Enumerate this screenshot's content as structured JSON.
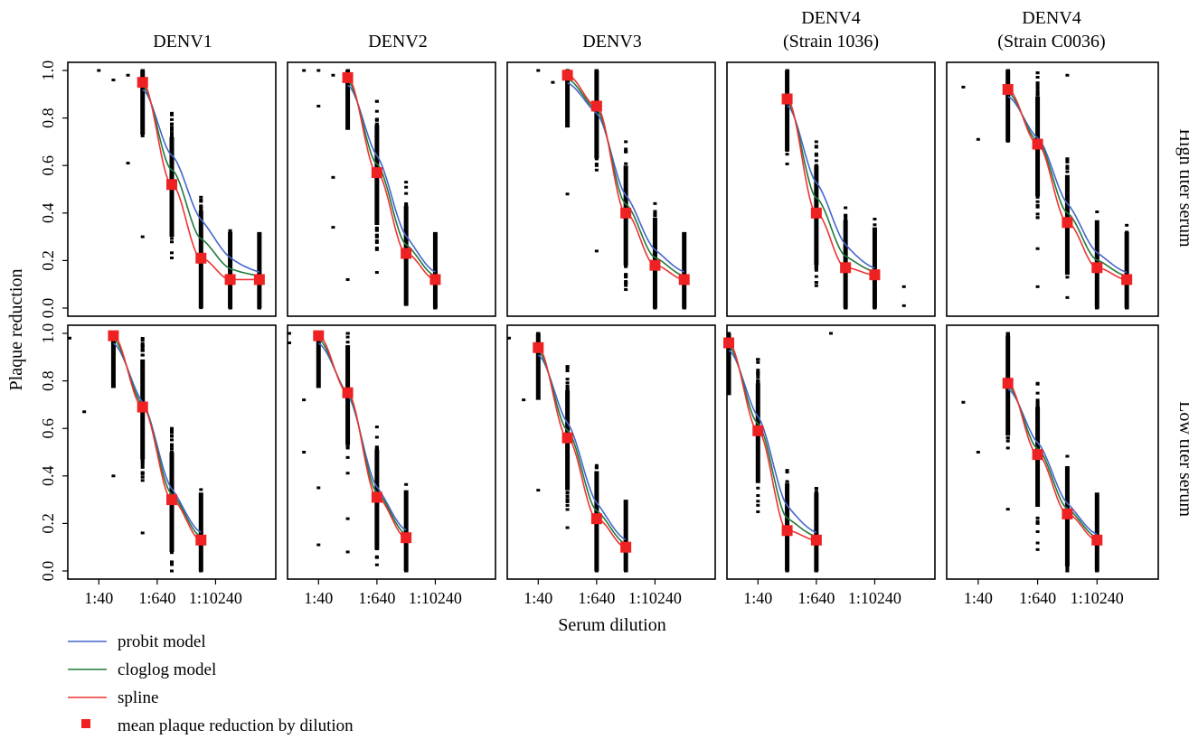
{
  "figure": {
    "ylabel": "Plaque reduction",
    "xlabel": "Serum dilution",
    "row_labels": [
      "High titer serum",
      "Low titer serum"
    ],
    "col_titles": [
      [
        "DENV1"
      ],
      [
        "DENV2"
      ],
      [
        "DENV3"
      ],
      [
        "DENV4",
        "(Strain 1036)"
      ],
      [
        "DENV4",
        "(Strain C0036)"
      ]
    ],
    "x_ticks": [
      {
        "label": "1:40",
        "dilution": 40
      },
      {
        "label": "1:640",
        "dilution": 640
      },
      {
        "label": "1:10240",
        "dilution": 10240
      }
    ],
    "y_ticks": [
      "0.0",
      "0.2",
      "0.4",
      "0.6",
      "0.8",
      "1.0"
    ]
  },
  "legend": {
    "items": [
      {
        "label": "probit model",
        "color": "#4466cc",
        "kind": "line"
      },
      {
        "label": "cloglog model",
        "color": "#1f7a3a",
        "kind": "line"
      },
      {
        "label": "spline",
        "color": "#ee3333",
        "kind": "line"
      },
      {
        "label": "mean plaque reduction by dilution",
        "color": "#ee2222",
        "kind": "square"
      }
    ]
  },
  "colors": {
    "probit": "#4466cc",
    "cloglog": "#1f7a3a",
    "spline": "#ee3333",
    "mean": "#ee2222",
    "points": "#000000"
  },
  "chart_data": [
    {
      "type": "scatter",
      "row": "High titer serum",
      "col": "DENV1",
      "x_scale": "log4 dilution",
      "xlim": [
        10,
        163840
      ],
      "ylim": [
        0,
        1
      ],
      "dilutions": [
        320,
        1280,
        5120,
        20480,
        81920
      ],
      "means": [
        0.95,
        0.52,
        0.21,
        0.12,
        0.12
      ],
      "stray_points": [
        [
          40,
          1.0
        ],
        [
          80,
          0.96
        ],
        [
          160,
          0.98
        ],
        [
          160,
          0.61
        ],
        [
          320,
          0.3
        ]
      ]
    },
    {
      "type": "scatter",
      "row": "High titer serum",
      "col": "DENV2",
      "x_scale": "log4 dilution",
      "xlim": [
        10,
        163840
      ],
      "ylim": [
        0,
        1
      ],
      "dilutions": [
        160,
        640,
        2560,
        10240
      ],
      "means": [
        0.97,
        0.57,
        0.23,
        0.12
      ],
      "stray_points": [
        [
          20,
          1.0
        ],
        [
          40,
          1.0
        ],
        [
          40,
          0.85
        ],
        [
          80,
          0.98
        ],
        [
          80,
          0.55
        ],
        [
          80,
          0.34
        ],
        [
          160,
          0.12
        ],
        [
          640,
          0.15
        ]
      ]
    },
    {
      "type": "scatter",
      "row": "High titer serum",
      "col": "DENV3",
      "x_scale": "log4 dilution",
      "xlim": [
        10,
        163840
      ],
      "ylim": [
        0,
        1
      ],
      "dilutions": [
        160,
        640,
        2560,
        10240,
        40960
      ],
      "means": [
        0.98,
        0.85,
        0.4,
        0.18,
        0.12
      ],
      "stray_points": [
        [
          40,
          1.0
        ],
        [
          80,
          0.95
        ],
        [
          160,
          0.48
        ],
        [
          640,
          0.24
        ]
      ]
    },
    {
      "type": "scatter",
      "row": "High titer serum",
      "col": "DENV4 (Strain 1036)",
      "x_scale": "log4 dilution",
      "xlim": [
        10,
        163840
      ],
      "ylim": [
        0,
        1
      ],
      "dilutions": [
        160,
        640,
        2560,
        10240
      ],
      "means": [
        0.88,
        0.4,
        0.17,
        0.14
      ],
      "stray_points": [
        [
          40960,
          0.09
        ],
        [
          40960,
          0.01
        ]
      ]
    },
    {
      "type": "scatter",
      "row": "High titer serum",
      "col": "DENV4 (Strain C0036)",
      "x_scale": "log4 dilution",
      "xlim": [
        10,
        163840
      ],
      "ylim": [
        0,
        1
      ],
      "dilutions": [
        160,
        640,
        2560,
        10240,
        40960
      ],
      "means": [
        0.92,
        0.69,
        0.36,
        0.17,
        0.12
      ],
      "stray_points": [
        [
          20,
          0.93
        ],
        [
          40,
          0.71
        ],
        [
          640,
          0.25
        ],
        [
          640,
          0.09
        ],
        [
          2560,
          0.98
        ]
      ]
    },
    {
      "type": "scatter",
      "row": "Low titer serum",
      "col": "DENV1",
      "x_scale": "log4 dilution",
      "xlim": [
        10,
        163840
      ],
      "ylim": [
        0,
        1
      ],
      "dilutions": [
        80,
        320,
        1280,
        5120
      ],
      "means": [
        0.99,
        0.69,
        0.3,
        0.13
      ],
      "stray_points": [
        [
          10,
          0.98
        ],
        [
          20,
          0.67
        ],
        [
          80,
          0.4
        ],
        [
          320,
          0.16
        ]
      ]
    },
    {
      "type": "scatter",
      "row": "Low titer serum",
      "col": "DENV2",
      "x_scale": "log4 dilution",
      "xlim": [
        10,
        163840
      ],
      "ylim": [
        0,
        1
      ],
      "dilutions": [
        40,
        160,
        640,
        2560
      ],
      "means": [
        0.99,
        0.75,
        0.31,
        0.14
      ],
      "stray_points": [
        [
          10,
          1.0
        ],
        [
          10,
          0.96
        ],
        [
          20,
          0.72
        ],
        [
          20,
          0.5
        ],
        [
          40,
          0.35
        ],
        [
          40,
          0.11
        ],
        [
          160,
          0.22
        ],
        [
          160,
          0.08
        ]
      ]
    },
    {
      "type": "scatter",
      "row": "Low titer serum",
      "col": "DENV3",
      "x_scale": "log4 dilution",
      "xlim": [
        10,
        163840
      ],
      "ylim": [
        0,
        1
      ],
      "dilutions": [
        40,
        160,
        640,
        2560
      ],
      "means": [
        0.94,
        0.56,
        0.22,
        0.1
      ],
      "stray_points": [
        [
          10,
          0.98
        ],
        [
          20,
          0.72
        ],
        [
          40,
          0.34
        ]
      ]
    },
    {
      "type": "scatter",
      "row": "Low titer serum",
      "col": "DENV4 (Strain 1036)",
      "x_scale": "log4 dilution",
      "xlim": [
        10,
        163840
      ],
      "ylim": [
        0,
        1
      ],
      "dilutions": [
        10,
        40,
        160,
        640
      ],
      "means": [
        0.96,
        0.59,
        0.17,
        0.13
      ],
      "stray_points": [
        [
          1280,
          1.0
        ]
      ]
    },
    {
      "type": "scatter",
      "row": "Low titer serum",
      "col": "DENV4 (Strain C0036)",
      "x_scale": "log4 dilution",
      "xlim": [
        10,
        163840
      ],
      "ylim": [
        0,
        1
      ],
      "dilutions": [
        160,
        640,
        2560,
        10240
      ],
      "means": [
        0.79,
        0.49,
        0.24,
        0.13
      ],
      "stray_points": [
        [
          20,
          0.71
        ],
        [
          40,
          0.5
        ],
        [
          160,
          0.26
        ],
        [
          640,
          0.09
        ]
      ]
    }
  ]
}
